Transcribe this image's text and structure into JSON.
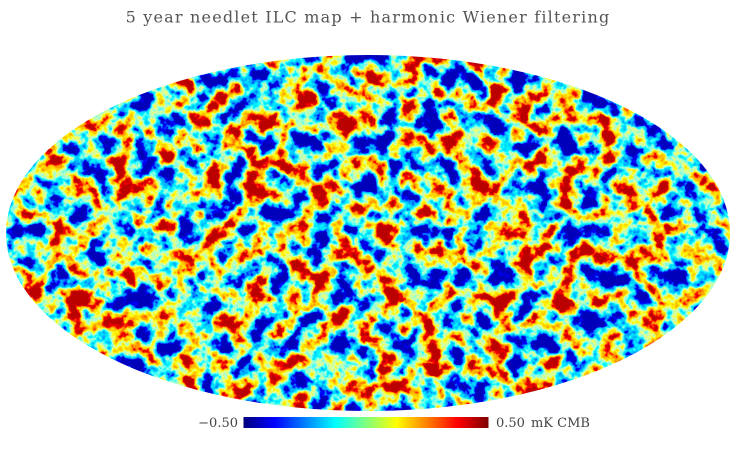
{
  "title": "5 year needlet ILC map + harmonic Wiener filtering",
  "colorbar": {
    "min": {
      "value": -0.5,
      "label": "−0.50"
    },
    "max": {
      "value": 0.5,
      "label": "0.50"
    },
    "unit": "mK CMB"
  }
}
